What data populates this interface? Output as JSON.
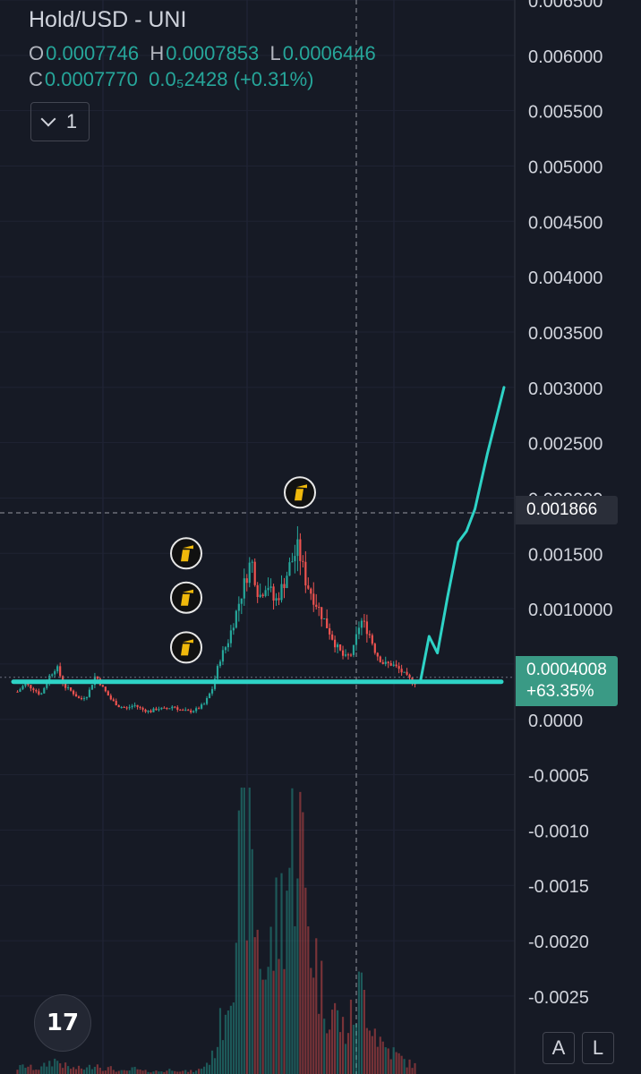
{
  "header": {
    "symbol": "Hold/USD - UNI",
    "o_key": "O",
    "o_value": "0.0007746",
    "h_key": "H",
    "h_value": "0.0007853",
    "l_key": "L",
    "l_value": "0.0006446",
    "c_key": "C",
    "c_value": "0.0007770",
    "change": "0.0₅2428 (+0.31%)",
    "indicator_count": "1"
  },
  "crosshair_price": "0.001866",
  "last_price": "0.0004008",
  "last_change": "+63.35%",
  "scale_buttons": {
    "auto": "A",
    "log": "L"
  },
  "logo_text": "17",
  "colors": {
    "background": "#161a25",
    "up": "#26a69a",
    "down": "#ef5350",
    "drawing": "#2ed3c6",
    "price_badge": "#3a9a85",
    "icon": "#f0b90b"
  },
  "icons": [
    "flag-icon",
    "tradingview-logo-icon",
    "chevron-down-icon"
  ],
  "chart_data": {
    "type": "candlestick",
    "title": "Hold/USD - UNI",
    "y_tick_labels": [
      "0.006500",
      "0.006000",
      "0.005500",
      "0.005000",
      "0.004500",
      "0.004000",
      "0.003500",
      "0.003000",
      "0.002500",
      "0.002000",
      "0.001500",
      "0.0010000",
      "0.0005000",
      "0.0000",
      "-0.0005",
      "-0.0010",
      "-0.0015",
      "-0.0020",
      "-0.0025"
    ],
    "ylim": [
      -0.0028,
      0.0065
    ],
    "grid": true,
    "close_path": [
      0.00025,
      0.00032,
      0.00028,
      0.00022,
      0.00038,
      0.00048,
      0.0003,
      0.00025,
      0.00018,
      0.00022,
      0.0004,
      0.00028,
      0.00018,
      0.00012,
      0.0001,
      0.00013,
      9e-05,
      7e-05,
      0.0001,
      9e-05,
      0.00012,
      8e-05,
      7e-05,
      9e-05,
      0.00014,
      0.00028,
      0.00055,
      0.0007,
      0.00095,
      0.0012,
      0.00145,
      0.0011,
      0.00125,
      0.00105,
      0.0012,
      0.0014,
      0.00155,
      0.00125,
      0.0011,
      0.00095,
      0.0008,
      0.00065,
      0.00055,
      0.0006,
      0.0009,
      0.0008,
      0.0006,
      0.0005,
      0.0005,
      0.00045,
      0.00038,
      0.00033
    ],
    "volume_path": [
      0.02,
      0.03,
      0.02,
      0.02,
      0.04,
      0.05,
      0.03,
      0.02,
      0.02,
      0.02,
      0.04,
      0.02,
      0.02,
      0.01,
      0.01,
      0.02,
      0.01,
      0.01,
      0.01,
      0.01,
      0.02,
      0.01,
      0.01,
      0.01,
      0.03,
      0.06,
      0.16,
      0.3,
      0.55,
      0.9,
      0.7,
      0.45,
      0.35,
      0.5,
      0.6,
      0.75,
      0.95,
      0.6,
      0.45,
      0.3,
      0.25,
      0.2,
      0.15,
      0.2,
      0.3,
      0.25,
      0.15,
      0.1,
      0.08,
      0.06,
      0.04,
      0.03
    ],
    "horizontal_line": 0.00034,
    "projection": [
      [
        0.00036,
        0
      ],
      [
        0.00075,
        0.1
      ],
      [
        0.0006,
        0.2
      ],
      [
        0.0011,
        0.32
      ],
      [
        0.0016,
        0.45
      ],
      [
        0.0017,
        0.55
      ],
      [
        0.0019,
        0.65
      ],
      [
        0.0024,
        0.8
      ],
      [
        0.003,
        1
      ]
    ],
    "crosshair": 0.001866,
    "markers": [
      {
        "price": 0.00205
      },
      {
        "price": 0.0015
      },
      {
        "price": 0.0011
      },
      {
        "price": 0.00065
      }
    ]
  }
}
